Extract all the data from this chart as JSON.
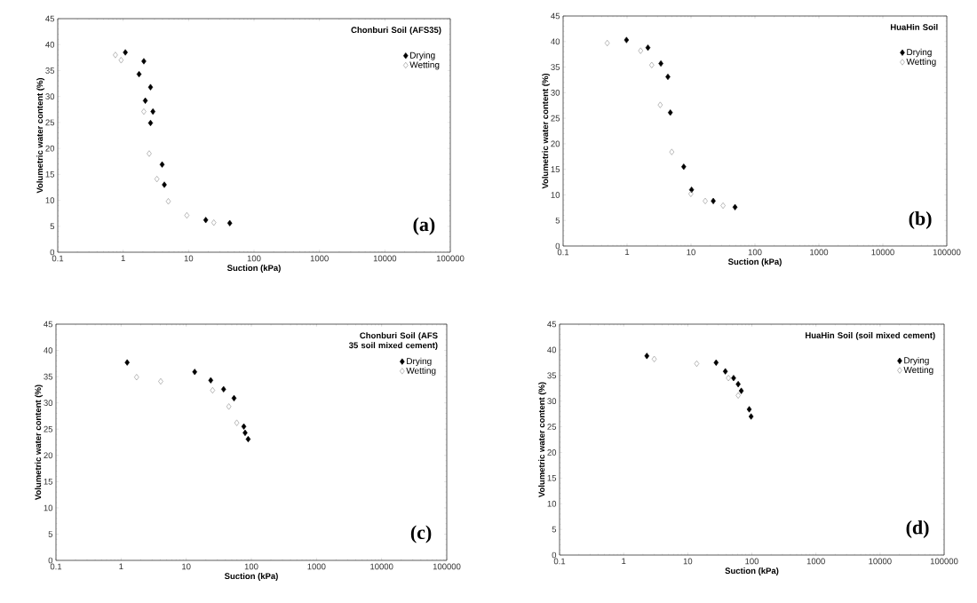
{
  "chart_data": [
    {
      "type": "scatter",
      "legend_title": "Chonburi Soil (AFS35)",
      "annotations": [
        "(a)"
      ],
      "xlabel": "Suction (kPa)",
      "ylabel": "Volumetric water content (%)",
      "log": "x",
      "legend": "top right",
      "marker": "diamond",
      "xlim": [
        0.1,
        100000
      ],
      "xticks": [
        0.1,
        1,
        10,
        100,
        1000,
        10000,
        100000
      ],
      "ylim": [
        0,
        45
      ],
      "yticks": [
        0,
        5,
        10,
        15,
        20,
        25,
        30,
        35,
        40,
        45
      ],
      "series": [
        {
          "name": "Drying",
          "color": "#000000",
          "x": [
            1.08,
            2.07,
            1.75,
            2.62,
            2.18,
            2.85,
            2.62,
            3.94,
            4.26,
            18.3,
            42.6
          ],
          "values": [
            38.5,
            36.8,
            34.3,
            31.8,
            29.2,
            27.1,
            24.9,
            16.9,
            13.0,
            6.2,
            5.6
          ]
        },
        {
          "name": "Wetting",
          "color": "#8c8c8c",
          "x": [
            0.76,
            0.93,
            2.07,
            2.5,
            3.28,
            4.9,
            9.4,
            24.3
          ],
          "values": [
            38.0,
            37.0,
            27.1,
            19.0,
            14.1,
            9.8,
            7.1,
            5.7
          ]
        }
      ]
    },
    {
      "type": "scatter",
      "legend_title": "HuaHin Soil",
      "annotations": [
        "(b)"
      ],
      "xlabel": "Suction (kPa)",
      "ylabel": "Volumetric water content (%)",
      "log": "x",
      "legend": "top right",
      "marker": "diamond",
      "xlim": [
        0.1,
        100000
      ],
      "xticks": [
        0.1,
        1,
        10,
        100,
        1000,
        10000,
        100000
      ],
      "ylim": [
        0,
        45
      ],
      "yticks": [
        0,
        5,
        10,
        15,
        20,
        25,
        30,
        35,
        40,
        45
      ],
      "series": [
        {
          "name": "Drying",
          "color": "#000000",
          "x": [
            0.98,
            2.12,
            3.38,
            4.35,
            4.75,
            7.7,
            10.2,
            22.3,
            48.8
          ],
          "values": [
            40.3,
            38.8,
            35.7,
            33.1,
            26.1,
            15.5,
            11.0,
            8.8,
            7.6
          ]
        },
        {
          "name": "Wetting",
          "color": "#8c8c8c",
          "x": [
            0.49,
            1.63,
            2.43,
            3.3,
            5.0,
            9.95,
            16.7,
            31.7
          ],
          "values": [
            39.7,
            38.2,
            35.4,
            27.6,
            18.4,
            10.2,
            8.8,
            7.9
          ]
        }
      ]
    },
    {
      "type": "scatter",
      "legend_title": "Chonburi Soil (AFS 35 soil mixed cement)",
      "annotations": [
        "(c)"
      ],
      "xlabel": "Suction (kPa)",
      "ylabel": "Volumetric water content (%)",
      "log": "x",
      "legend": "top right",
      "marker": "diamond",
      "xlim": [
        0.1,
        100000
      ],
      "xticks": [
        0.1,
        1,
        10,
        100,
        1000,
        10000,
        100000
      ],
      "ylim": [
        0,
        45
      ],
      "yticks": [
        0,
        5,
        10,
        15,
        20,
        25,
        30,
        35,
        40,
        45
      ],
      "series": [
        {
          "name": "Drying",
          "color": "#000000",
          "x": [
            1.24,
            13.5,
            23.8,
            37.5,
            54.2,
            76.7,
            80.2,
            89.3
          ],
          "values": [
            37.7,
            35.9,
            34.3,
            32.6,
            30.9,
            25.5,
            24.3,
            23.1
          ]
        },
        {
          "name": "Wetting",
          "color": "#8c8c8c",
          "x": [
            1.73,
            4.06,
            25.4,
            45.1,
            59.7
          ],
          "values": [
            34.9,
            34.1,
            32.4,
            29.3,
            26.2
          ]
        }
      ]
    },
    {
      "type": "scatter",
      "legend_title": "HuaHin Soil (soil mixed cement)",
      "annotations": [
        "(d)"
      ],
      "xlabel": "Suction (kPa)",
      "ylabel": "Volumetric water content (%)",
      "log": "x",
      "legend": "top right",
      "marker": "diamond",
      "xlim": [
        0.1,
        100000
      ],
      "xticks": [
        0.1,
        1,
        10,
        100,
        1000,
        10000,
        100000
      ],
      "ylim": [
        0,
        45
      ],
      "yticks": [
        0,
        5,
        10,
        15,
        20,
        25,
        30,
        35,
        40,
        45
      ],
      "series": [
        {
          "name": "Drying",
          "color": "#000000",
          "x": [
            2.3,
            27.7,
            38.6,
            51.9,
            61.2,
            68.4,
            91,
            97.3
          ],
          "values": [
            38.8,
            37.5,
            35.8,
            34.5,
            33.3,
            32.0,
            28.4,
            27.0
          ]
        },
        {
          "name": "Wetting",
          "color": "#8c8c8c",
          "x": [
            3.0,
            13.8,
            43.1,
            61.2
          ],
          "values": [
            38.2,
            37.3,
            34.5,
            31.1
          ]
        }
      ]
    }
  ]
}
